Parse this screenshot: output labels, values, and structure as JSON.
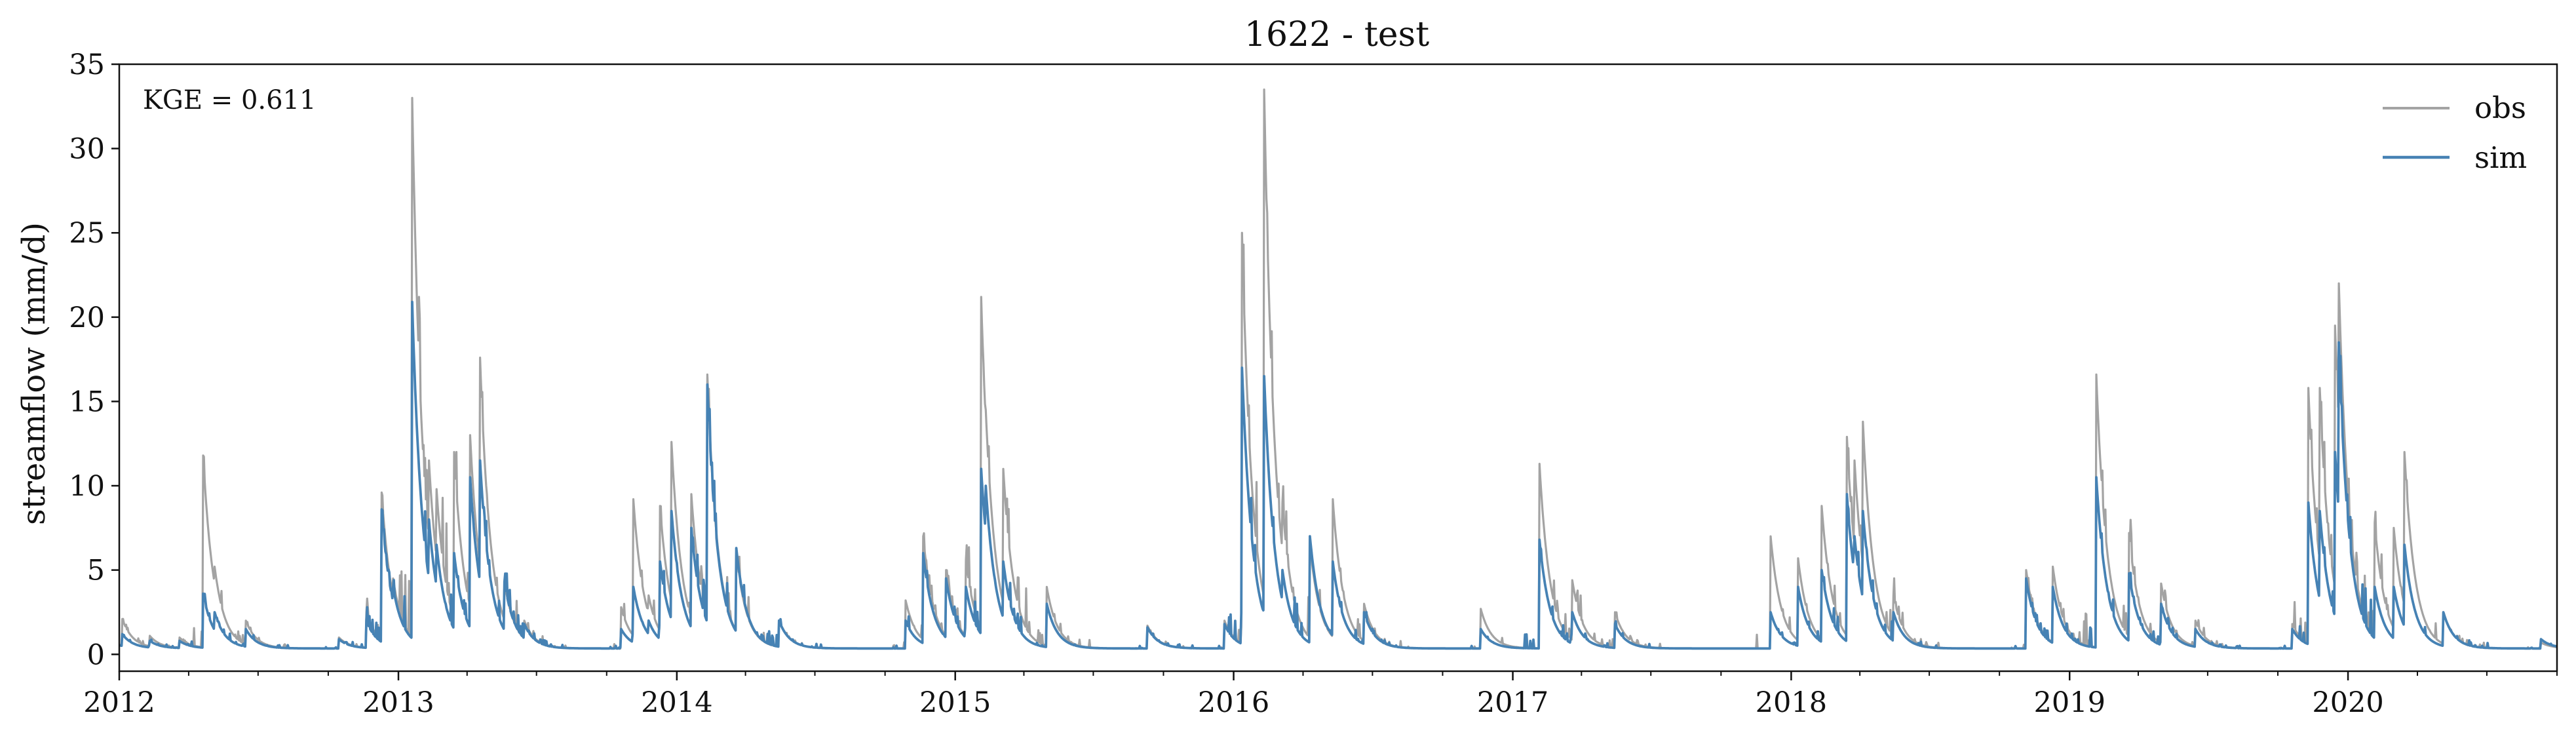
{
  "chart_data": {
    "type": "line",
    "title": "1622 - test",
    "xlabel": "",
    "ylabel": "streamflow (mm/d)",
    "annotation": "KGE = 0.611",
    "x_range": [
      "2012-01-01",
      "2020-10-01"
    ],
    "ylim": [
      -1,
      35
    ],
    "x_ticks": [
      "2012",
      "2013",
      "2014",
      "2015",
      "2016",
      "2017",
      "2018",
      "2019",
      "2020"
    ],
    "y_ticks": [
      0,
      5,
      10,
      15,
      20,
      25,
      30,
      35
    ],
    "grid": false,
    "legend_position": "top-right",
    "baseflow": 0.35,
    "colors": {
      "obs": "#a3a3a3",
      "sim": "#4682b4"
    },
    "series": [
      {
        "name": "obs",
        "color": "#a3a3a3",
        "events": [
          [
            "2012-01-05",
            2.1
          ],
          [
            "2012-02-10",
            1.1
          ],
          [
            "2012-03-20",
            1.0
          ],
          [
            "2012-04-20",
            11.8
          ],
          [
            "2012-05-05",
            5.2
          ],
          [
            "2012-06-15",
            2.0
          ],
          [
            "2012-10-15",
            1.0
          ],
          [
            "2012-11-20",
            2.5
          ],
          [
            "2012-12-10",
            9.6
          ],
          [
            "2012-12-25",
            4.5
          ],
          [
            "2013-01-19",
            33.0
          ],
          [
            "2013-02-10",
            11.5
          ],
          [
            "2013-02-20",
            9.8
          ],
          [
            "2013-03-15",
            12.0
          ],
          [
            "2013-04-05",
            13.0
          ],
          [
            "2013-04-18",
            17.6
          ],
          [
            "2013-05-20",
            4.3
          ],
          [
            "2013-06-15",
            2.0
          ],
          [
            "2013-10-20",
            2.8
          ],
          [
            "2013-11-05",
            9.2
          ],
          [
            "2013-11-25",
            3.5
          ],
          [
            "2013-12-10",
            8.8
          ],
          [
            "2013-12-25",
            12.6
          ],
          [
            "2014-01-20",
            9.5
          ],
          [
            "2014-02-10",
            16.6
          ],
          [
            "2014-03-20",
            6.0
          ],
          [
            "2014-05-15",
            2.0
          ],
          [
            "2014-10-28",
            3.2
          ],
          [
            "2014-11-20",
            7.0
          ],
          [
            "2014-12-20",
            5.0
          ],
          [
            "2015-01-15",
            5.6
          ],
          [
            "2015-02-04",
            21.2
          ],
          [
            "2015-02-10",
            14.5
          ],
          [
            "2015-03-05",
            11.0
          ],
          [
            "2015-05-01",
            4.0
          ],
          [
            "2015-09-10",
            1.7
          ],
          [
            "2015-12-20",
            2.0
          ],
          [
            "2016-01-12",
            25.0
          ],
          [
            "2016-01-20",
            14.0
          ],
          [
            "2016-02-10",
            33.5
          ],
          [
            "2016-03-05",
            9.0
          ],
          [
            "2016-04-10",
            6.5
          ],
          [
            "2016-05-10",
            9.2
          ],
          [
            "2016-06-20",
            3.0
          ],
          [
            "2016-11-20",
            2.7
          ],
          [
            "2017-02-05",
            11.3
          ],
          [
            "2017-03-20",
            4.4
          ],
          [
            "2017-05-15",
            2.5
          ],
          [
            "2017-12-05",
            7.0
          ],
          [
            "2018-01-10",
            5.7
          ],
          [
            "2018-02-10",
            8.8
          ],
          [
            "2018-03-15",
            12.9
          ],
          [
            "2018-03-25",
            11.5
          ],
          [
            "2018-04-05",
            13.8
          ],
          [
            "2018-05-15",
            3.5
          ],
          [
            "2018-11-05",
            5.0
          ],
          [
            "2018-12-10",
            5.2
          ],
          [
            "2019-02-05",
            16.6
          ],
          [
            "2019-03-20",
            7.2
          ],
          [
            "2019-05-01",
            4.2
          ],
          [
            "2019-06-15",
            2.0
          ],
          [
            "2019-10-20",
            1.8
          ],
          [
            "2019-11-10",
            15.8
          ],
          [
            "2019-11-25",
            15.8
          ],
          [
            "2019-12-15",
            19.5
          ],
          [
            "2019-12-20",
            22.0
          ],
          [
            "2020-02-05",
            7.8
          ],
          [
            "2020-03-01",
            7.5
          ],
          [
            "2020-03-15",
            12.0
          ],
          [
            "2020-05-05",
            2.5
          ],
          [
            "2020-09-10",
            0.7
          ]
        ]
      },
      {
        "name": "sim",
        "color": "#4682b4",
        "events": [
          [
            "2012-01-05",
            1.2
          ],
          [
            "2012-02-10",
            0.8
          ],
          [
            "2012-03-20",
            0.8
          ],
          [
            "2012-04-20",
            3.6
          ],
          [
            "2012-05-05",
            2.5
          ],
          [
            "2012-06-15",
            1.5
          ],
          [
            "2012-10-15",
            0.9
          ],
          [
            "2012-11-20",
            2.0
          ],
          [
            "2012-12-10",
            8.6
          ],
          [
            "2012-12-25",
            4.0
          ],
          [
            "2013-01-19",
            20.9
          ],
          [
            "2013-02-10",
            8.0
          ],
          [
            "2013-02-20",
            6.5
          ],
          [
            "2013-03-15",
            6.0
          ],
          [
            "2013-04-05",
            10.5
          ],
          [
            "2013-04-18",
            11.5
          ],
          [
            "2013-05-20",
            4.3
          ],
          [
            "2013-06-15",
            1.8
          ],
          [
            "2013-10-20",
            1.5
          ],
          [
            "2013-11-05",
            4.0
          ],
          [
            "2013-11-25",
            2.0
          ],
          [
            "2013-12-10",
            5.5
          ],
          [
            "2013-12-25",
            8.5
          ],
          [
            "2014-01-20",
            7.5
          ],
          [
            "2014-02-10",
            16.0
          ],
          [
            "2014-03-20",
            6.3
          ],
          [
            "2014-05-15",
            2.0
          ],
          [
            "2014-10-28",
            2.0
          ],
          [
            "2014-11-20",
            6.0
          ],
          [
            "2014-12-20",
            4.5
          ],
          [
            "2015-01-15",
            4.0
          ],
          [
            "2015-02-04",
            11.0
          ],
          [
            "2015-02-10",
            10.0
          ],
          [
            "2015-03-05",
            5.5
          ],
          [
            "2015-05-01",
            3.0
          ],
          [
            "2015-09-10",
            1.6
          ],
          [
            "2015-12-20",
            1.8
          ],
          [
            "2016-01-12",
            17.0
          ],
          [
            "2016-01-20",
            6.0
          ],
          [
            "2016-02-10",
            16.5
          ],
          [
            "2016-03-05",
            5.0
          ],
          [
            "2016-04-10",
            7.0
          ],
          [
            "2016-05-10",
            5.5
          ],
          [
            "2016-06-20",
            2.5
          ],
          [
            "2016-11-20",
            1.5
          ],
          [
            "2017-02-05",
            6.8
          ],
          [
            "2017-03-20",
            2.5
          ],
          [
            "2017-05-15",
            1.8
          ],
          [
            "2017-12-05",
            2.5
          ],
          [
            "2018-01-10",
            4.0
          ],
          [
            "2018-02-10",
            5.0
          ],
          [
            "2018-03-15",
            9.5
          ],
          [
            "2018-03-25",
            7.0
          ],
          [
            "2018-04-05",
            8.5
          ],
          [
            "2018-05-15",
            2.5
          ],
          [
            "2018-11-05",
            4.5
          ],
          [
            "2018-12-10",
            4.0
          ],
          [
            "2019-02-05",
            10.5
          ],
          [
            "2019-03-20",
            4.8
          ],
          [
            "2019-05-01",
            3.0
          ],
          [
            "2019-06-15",
            1.5
          ],
          [
            "2019-10-20",
            1.5
          ],
          [
            "2019-11-10",
            9.0
          ],
          [
            "2019-11-25",
            8.5
          ],
          [
            "2019-12-15",
            12.0
          ],
          [
            "2019-12-20",
            18.5
          ],
          [
            "2020-02-05",
            4.0
          ],
          [
            "2020-03-01",
            4.0
          ],
          [
            "2020-03-15",
            6.5
          ],
          [
            "2020-05-05",
            2.5
          ],
          [
            "2020-09-10",
            0.9
          ]
        ]
      }
    ]
  }
}
